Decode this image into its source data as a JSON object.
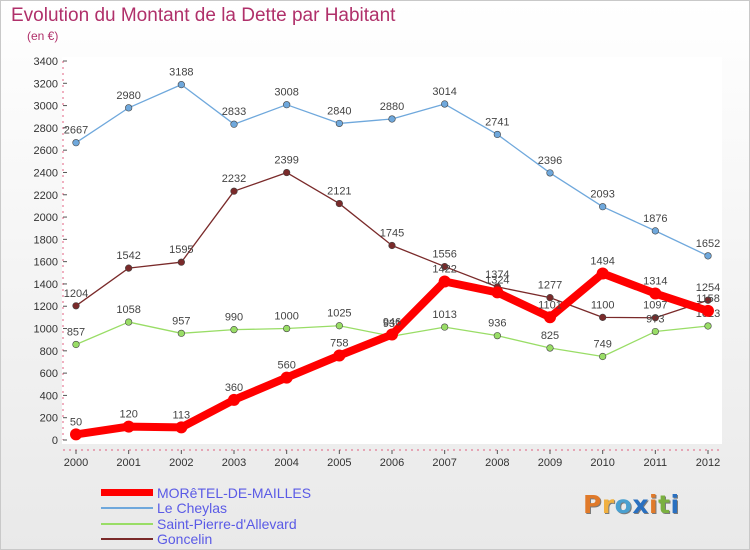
{
  "title": "Evolution du Montant de la Dette par Habitant",
  "subtitle": "(en €)",
  "logo": {
    "text": "Proxiti",
    "colors": [
      "#e07a2a",
      "#f0b040",
      "#4aa0d0",
      "#2a70c0",
      "#e07a2a",
      "#7ab040",
      "#2a70c0"
    ]
  },
  "chart_data": {
    "type": "line",
    "xlabel": "",
    "ylabel": "",
    "x": [
      "2000",
      "2001",
      "2002",
      "2003",
      "2004",
      "2005",
      "2006",
      "2007",
      "2008",
      "2009",
      "2010",
      "2011",
      "2012"
    ],
    "ylim": [
      0,
      3400
    ],
    "yticks": [
      0,
      200,
      400,
      600,
      800,
      1000,
      1200,
      1400,
      1600,
      1800,
      2000,
      2200,
      2400,
      2600,
      2800,
      3000,
      3200,
      3400
    ],
    "grid": false,
    "legend_position": "bottom-left",
    "series": [
      {
        "name": "MORêTEL-DE-MAILLES",
        "color": "#ff0000",
        "values": [
          50,
          120,
          113,
          360,
          560,
          758,
          946,
          1422,
          1324,
          1101,
          1494,
          1314,
          1158
        ],
        "labels": [
          "50",
          "120",
          "113",
          "360",
          "560",
          "758",
          "946",
          "1422",
          "1324",
          "1101",
          "1494",
          "1314",
          "1158"
        ]
      },
      {
        "name": "Le Cheylas",
        "color": "#6fa8dc",
        "values": [
          2667,
          2980,
          3188,
          2833,
          3008,
          2840,
          2880,
          3014,
          2741,
          2396,
          2093,
          1876,
          1652
        ],
        "labels": [
          "2667",
          "2980",
          "3188",
          "2833",
          "3008",
          "2840",
          "2880",
          "3014",
          "2741",
          "2396",
          "2093",
          "1876",
          "1652"
        ]
      },
      {
        "name": "Saint-Pierre-d'Allevard",
        "color": "#99dd66",
        "values": [
          857,
          1058,
          957,
          990,
          1000,
          1025,
          931,
          1013,
          936,
          825,
          749,
          973,
          1023
        ],
        "labels": [
          "857",
          "1058",
          "957",
          "990",
          "1000",
          "1025",
          "931",
          "1013",
          "936",
          "825",
          "749",
          "973",
          "1023"
        ]
      },
      {
        "name": "Goncelin",
        "color": "#7a2a2a",
        "values": [
          1204,
          1542,
          1595,
          2232,
          2399,
          2121,
          1745,
          1556,
          1374,
          1277,
          1100,
          1097,
          1254
        ],
        "labels": [
          "1204",
          "1542",
          "1595",
          "2232",
          "2399",
          "2121",
          "1745",
          "1556",
          "1374",
          "1277",
          "1100",
          "1097",
          "1254"
        ]
      }
    ]
  }
}
